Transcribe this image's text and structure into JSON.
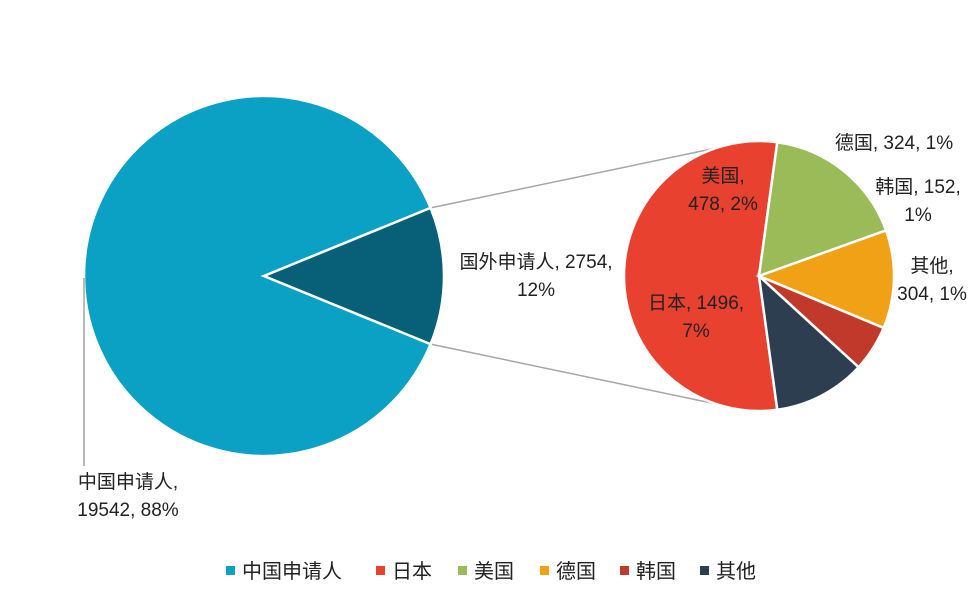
{
  "chart_data": {
    "type": "pie",
    "title": "",
    "main_pie": {
      "slices": [
        {
          "name": "中国申请人",
          "value": 19542,
          "percent": "88%",
          "color": "#0aa1c5",
          "label_lines": [
            "中国申请人,",
            "19542, 88%"
          ]
        },
        {
          "name": "国外申请人",
          "value": 2754,
          "percent": "12%",
          "color": "#075f78",
          "label_lines": [
            "国外申请人, 2754,",
            "12%"
          ]
        }
      ]
    },
    "secondary_pie": {
      "slices": [
        {
          "name": "日本",
          "value": 1496,
          "percent": "7%",
          "color": "#e8412f",
          "label_lines": [
            "日本, 1496,",
            "7%"
          ]
        },
        {
          "name": "美国",
          "value": 478,
          "percent": "2%",
          "color": "#9bbb59",
          "label_lines": [
            "美国,",
            "478, 2%"
          ]
        },
        {
          "name": "德国",
          "value": 324,
          "percent": "1%",
          "color": "#f0a116",
          "label_lines": [
            "德国, 324, 1%"
          ]
        },
        {
          "name": "韩国",
          "value": 152,
          "percent": "1%",
          "color": "#c0392b",
          "label_lines": [
            "韩国, 152,",
            "1%"
          ]
        },
        {
          "name": "其他",
          "value": 304,
          "percent": "1%",
          "color": "#2c3e50",
          "label_lines": [
            "其他,",
            "304, 1%"
          ]
        }
      ]
    },
    "legend": {
      "position": "bottom",
      "items": [
        {
          "name": "中国申请人",
          "color": "#0aa1c5"
        },
        {
          "name": "日本",
          "color": "#e8412f"
        },
        {
          "name": "美国",
          "color": "#9bbb59"
        },
        {
          "name": "德国",
          "color": "#f0a116"
        },
        {
          "name": "韩国",
          "color": "#c0392b"
        },
        {
          "name": "其他",
          "color": "#2c3e50"
        }
      ]
    }
  }
}
